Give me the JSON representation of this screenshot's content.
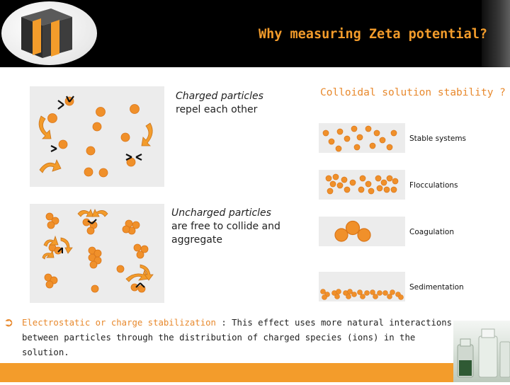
{
  "header": {
    "title": "Why measuring Zeta potential?"
  },
  "panels": {
    "charged": {
      "title": "Charged particles",
      "subtitle": "repel each other"
    },
    "uncharged": {
      "title": "Uncharged particles",
      "subtitle_line1": "are free to collide and",
      "subtitle_line2": "aggregate"
    }
  },
  "stability": {
    "title": "Colloidal solution stability ?",
    "items": [
      "Stable systems",
      "Flocculations",
      "Coagulation",
      "Sedimentation"
    ]
  },
  "body": {
    "highlight": "Electrostatic or charge stabilization",
    "line1_rest": " : This effect uses more natural interactions",
    "line2": "between particles through the distribution of charged species (ions) in the solution."
  },
  "colors": {
    "accent": "#f39c2b",
    "particle": "#f0902a",
    "particle_edge": "#d9761a"
  }
}
